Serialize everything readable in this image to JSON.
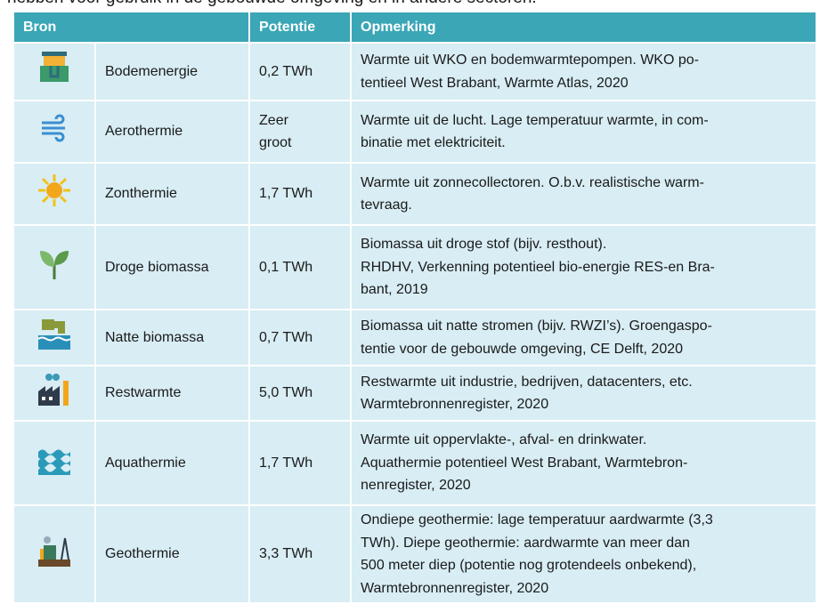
{
  "intro": "hebben voor gebruik in de gebouwde omgeving en in andere sectoren.",
  "table": {
    "headers": [
      "Bron",
      "Potentie",
      "Opmerking"
    ],
    "rows": [
      {
        "bron": "Bodemenergie",
        "potentie": "0,2 TWh",
        "opmerking": [
          "Warmte uit WKO en bodemwarmtepompen. WKO po-",
          "tentieel West Brabant, Warmte Atlas, 2020"
        ]
      },
      {
        "bron": "Aerothermie",
        "potentie": "Zeer groot",
        "opmerking": [
          "Warmte uit de lucht. Lage temperatuur warmte, in com-",
          "binatie met elektriciteit."
        ]
      },
      {
        "bron": "Zonthermie",
        "potentie": "1,7 TWh",
        "opmerking": [
          "Warmte uit zonnecollectoren. O.b.v. realistische warm-",
          "tevraag."
        ]
      },
      {
        "bron": "Droge biomassa",
        "potentie": "0,1 TWh",
        "opmerking": [
          "Biomassa uit droge stof (bijv. resthout).",
          "RHDHV,  Verkenning potentieel bio-energie RES-en Bra-",
          "bant, 2019"
        ]
      },
      {
        "bron": "Natte biomassa",
        "potentie": "0,7  TWh",
        "opmerking": [
          "Biomassa uit natte stromen (bijv. RWZI’s). Groengaspo-",
          "tentie voor de gebouwde omgeving, CE Delft, 2020"
        ]
      },
      {
        "bron": "Restwarmte",
        "potentie": "5,0 TWh",
        "opmerking": [
          "Restwarmte uit industrie, bedrijven, datacenters, etc.",
          "Warmtebronnenregister, 2020"
        ]
      },
      {
        "bron": "Aquathermie",
        "potentie": "1,7 TWh",
        "opmerking": [
          "Warmte uit oppervlakte-, afval- en drinkwater.",
          "Aquathermie potentieel West Brabant, Warmtebron-",
          "nenregister, 2020"
        ]
      },
      {
        "bron": "Geothermie",
        "potentie": "3,3 TWh",
        "opmerking": [
          "Ondiepe geothermie: lage temperatuur aardwarmte (3,3",
          "TWh). Diepe geothermie: aardwarmte  van meer dan",
          "500 meter diep (potentie nog grotendeels onbekend),",
          "Warmtebronnenregister, 2020"
        ]
      }
    ]
  }
}
